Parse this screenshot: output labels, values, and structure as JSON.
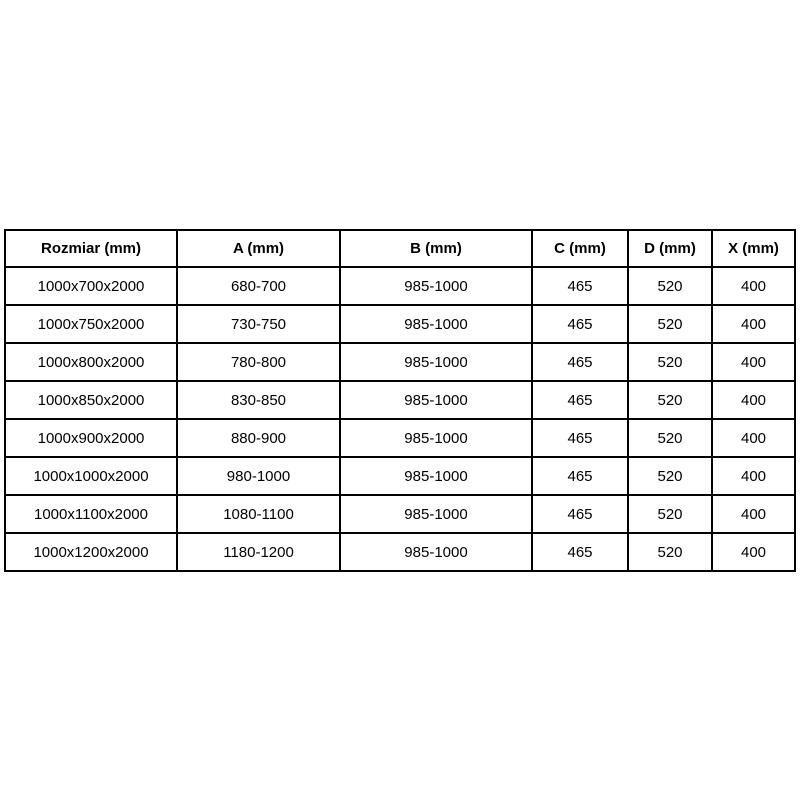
{
  "page": {
    "background_color": "#ffffff",
    "text_color": "#000000",
    "border_color": "#000000"
  },
  "table": {
    "headers": [
      "Rozmiar (mm)",
      "A (mm)",
      "B (mm)",
      "C (mm)",
      "D (mm)",
      "X (mm)"
    ],
    "rows": [
      [
        "1000x700x2000",
        "680-700",
        "985-1000",
        "465",
        "520",
        "400"
      ],
      [
        "1000x750x2000",
        "730-750",
        "985-1000",
        "465",
        "520",
        "400"
      ],
      [
        "1000x800x2000",
        "780-800",
        "985-1000",
        "465",
        "520",
        "400"
      ],
      [
        "1000x850x2000",
        "830-850",
        "985-1000",
        "465",
        "520",
        "400"
      ],
      [
        "1000x900x2000",
        "880-900",
        "985-1000",
        "465",
        "520",
        "400"
      ],
      [
        "1000x1000x2000",
        "980-1000",
        "985-1000",
        "465",
        "520",
        "400"
      ],
      [
        "1000x1100x2000",
        "1080-1100",
        "985-1000",
        "465",
        "520",
        "400"
      ],
      [
        "1000x1200x2000",
        "1180-1200",
        "985-1000",
        "465",
        "520",
        "400"
      ]
    ]
  }
}
